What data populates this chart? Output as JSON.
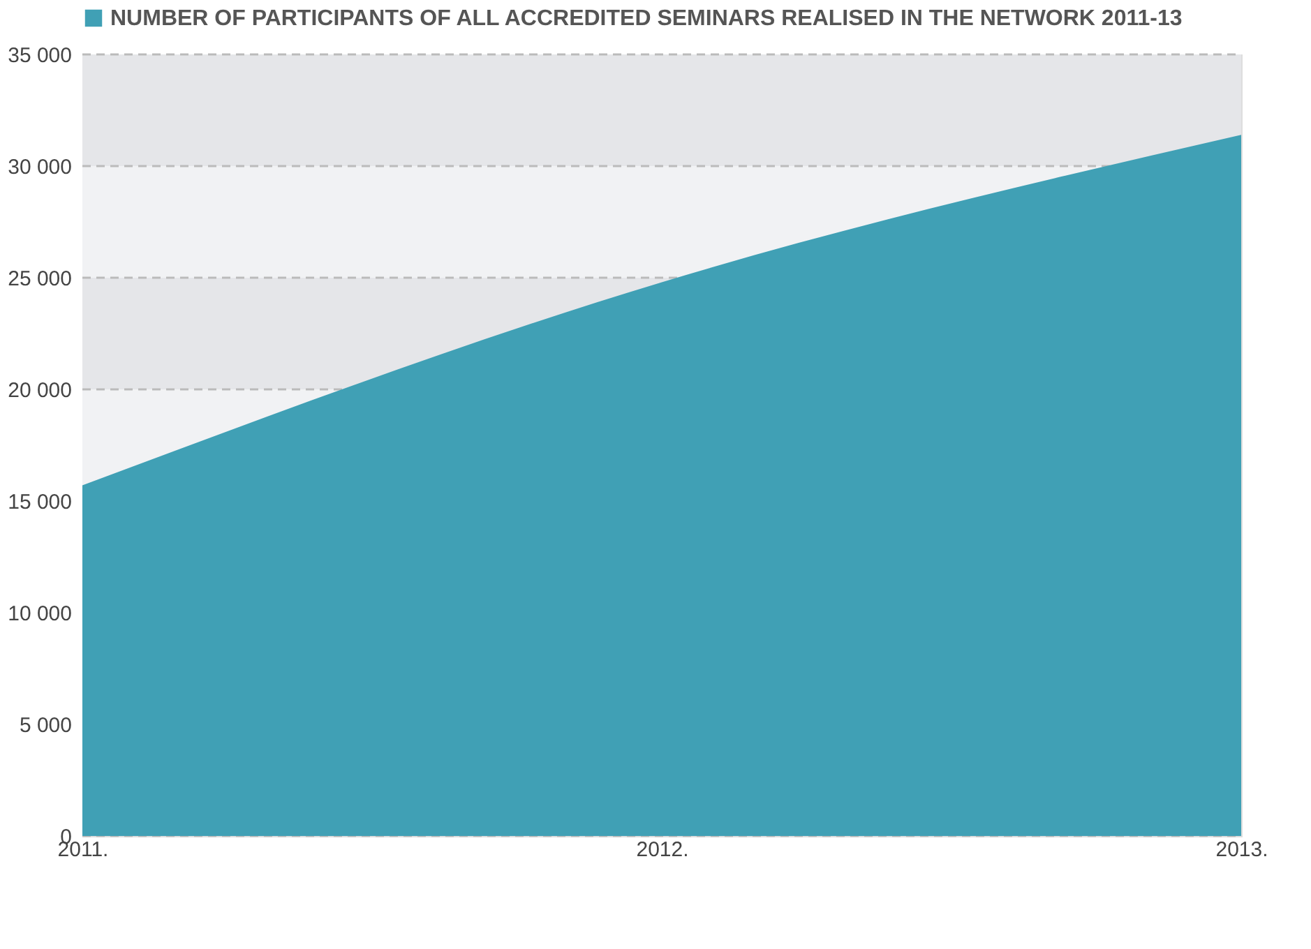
{
  "chart_data": {
    "type": "area",
    "categories": [
      "2011.",
      "2012.",
      "2013."
    ],
    "series": [
      {
        "name": "NUMBER OF PARTICIPANTS OF ALL ACCREDITED SEMINARS REALISED IN THE NETWORK 2011-13",
        "color": "#40a0b5",
        "values": [
          15700,
          24800,
          31400
        ]
      }
    ],
    "ylim": [
      0,
      35000
    ],
    "yticks": [
      0,
      {
        "value": 5000,
        "label": "5 000"
      },
      {
        "value": 10000,
        "label": "10 000"
      },
      {
        "value": 15000,
        "label": "15 000"
      },
      {
        "value": 20000,
        "label": "20 000"
      },
      {
        "value": 25000,
        "label": "25 000"
      },
      {
        "value": 30000,
        "label": "30 000"
      },
      {
        "value": 35000,
        "label": "35 000"
      }
    ],
    "bands": [
      {
        "axis": "y",
        "from": 30000,
        "to": 35000,
        "color": "#e5e6e9"
      },
      {
        "axis": "y",
        "from": 25000,
        "to": 30000,
        "color": "#f1f2f4"
      },
      {
        "axis": "y",
        "from": 20000,
        "to": 25000,
        "color": "#e5e6e9"
      },
      {
        "axis": "y",
        "from": 15000,
        "to": 20000,
        "color": "#f1f2f4"
      }
    ],
    "grid": "y",
    "legend": "top left"
  }
}
